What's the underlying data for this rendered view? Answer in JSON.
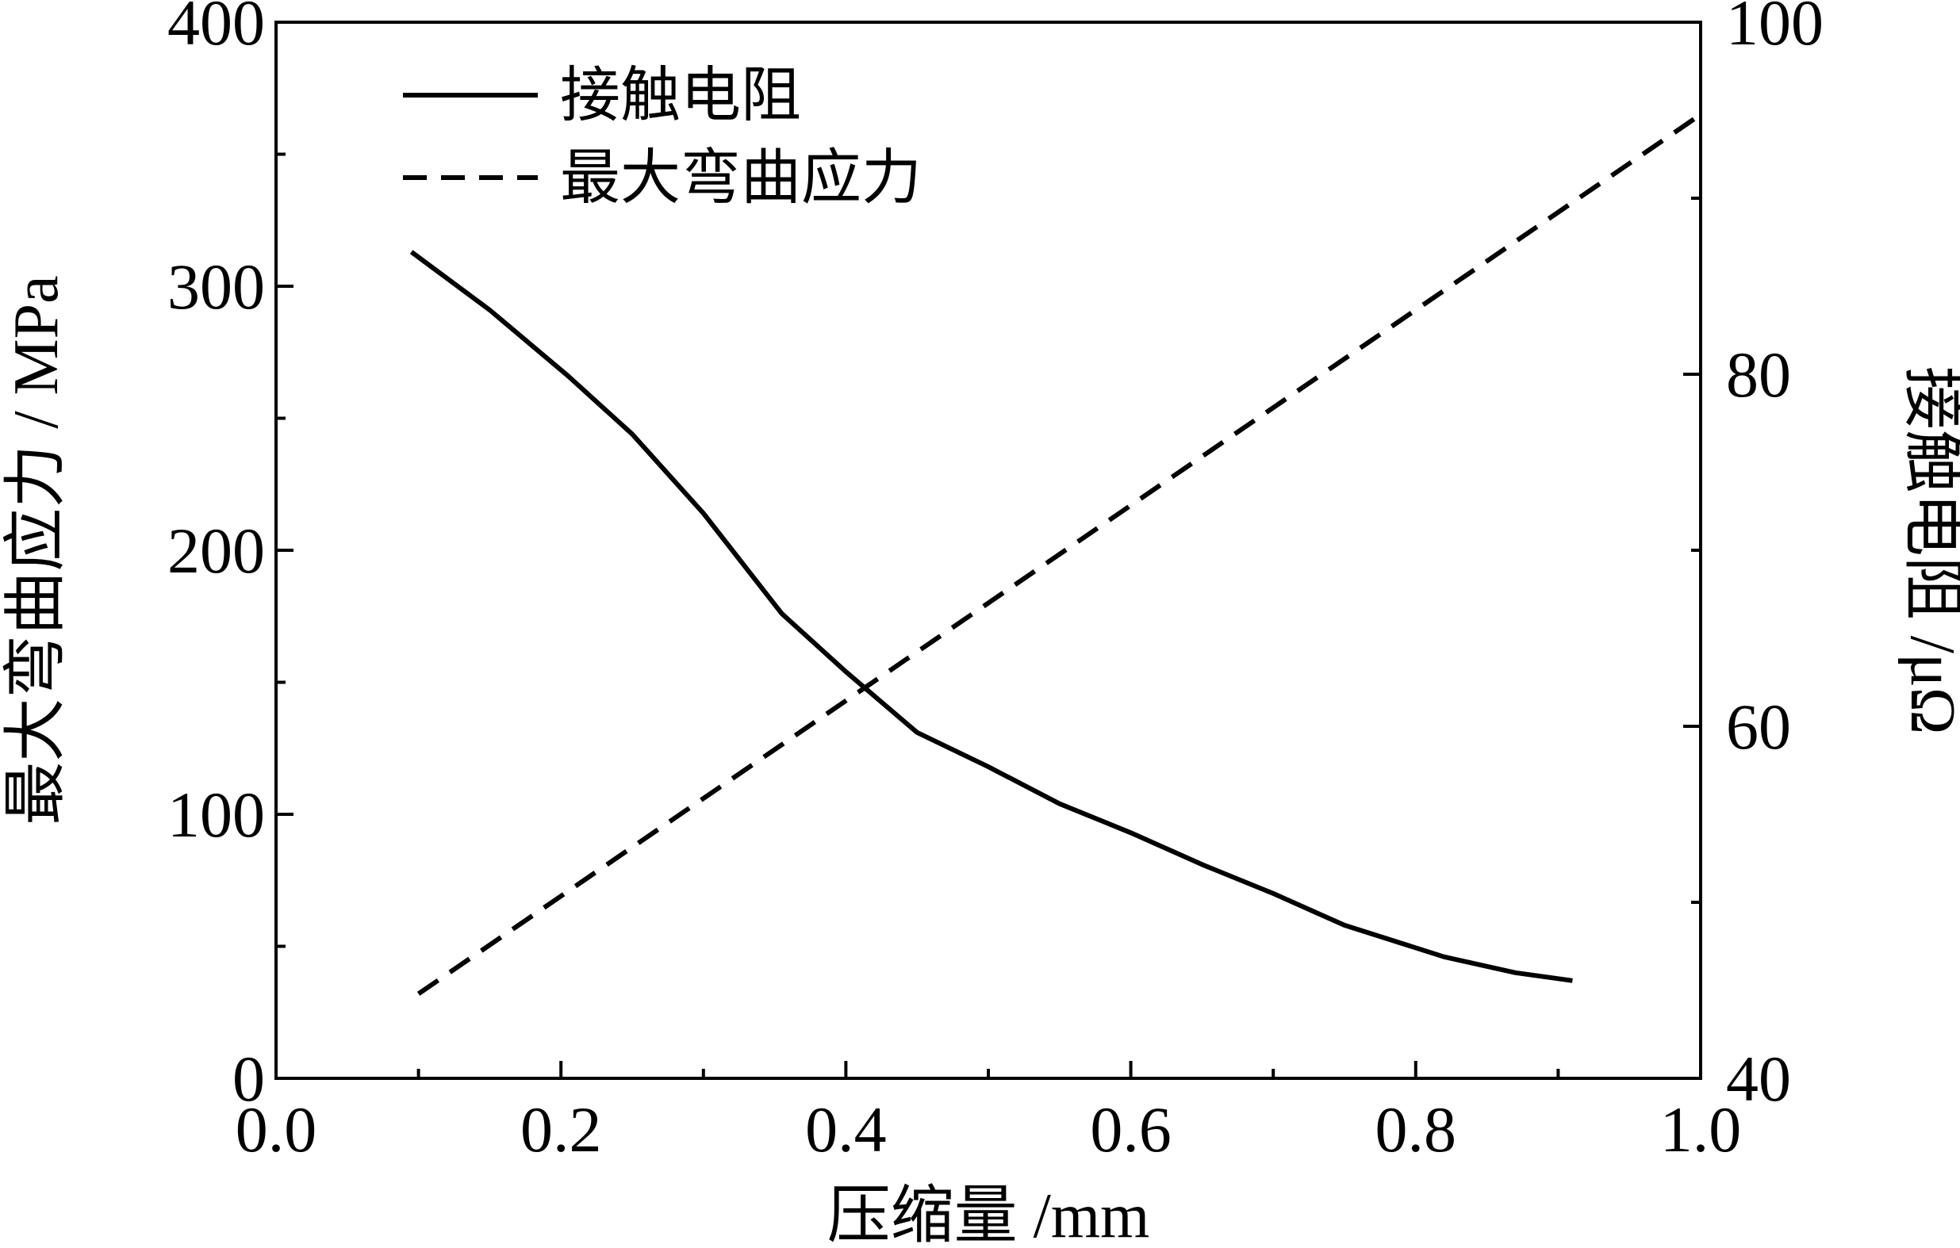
{
  "chart_data": {
    "type": "line",
    "title": "",
    "xlabel": "压缩量 /mm",
    "ylabel_left": "最大弯曲应力 / MPa",
    "ylabel_right": "接触电阻 /μΩ",
    "xlim": [
      0.0,
      1.0
    ],
    "ylim_left": [
      0,
      400
    ],
    "ylim_right": [
      40,
      100
    ],
    "x_ticks": [
      "0.0",
      "0.2",
      "0.4",
      "0.6",
      "0.8",
      "1.0"
    ],
    "y_left_ticks": [
      "0",
      "100",
      "200",
      "300",
      "400"
    ],
    "y_right_ticks": [
      "40",
      "60",
      "80",
      "100"
    ],
    "grid": false,
    "legend_position": "top-left",
    "series": [
      {
        "name": "接触电阻",
        "style": "solid",
        "axis": "left",
        "x": [
          0.095,
          0.15,
          0.205,
          0.25,
          0.3,
          0.355,
          0.4,
          0.45,
          0.5,
          0.55,
          0.6,
          0.65,
          0.7,
          0.75,
          0.82,
          0.87,
          0.91
        ],
        "y": [
          313,
          291,
          266,
          244,
          214,
          176,
          154,
          131,
          118,
          104,
          93,
          81,
          70,
          58,
          46,
          40,
          37
        ]
      },
      {
        "name": "最大弯曲应力",
        "style": "dashed",
        "axis": "left",
        "x": [
          0.1,
          1.0
        ],
        "y": [
          32,
          365
        ]
      }
    ]
  }
}
